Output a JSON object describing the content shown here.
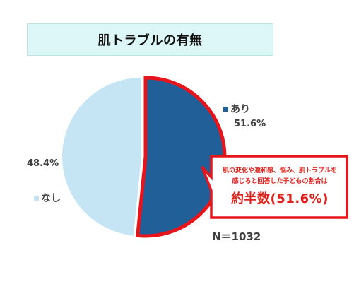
{
  "title": "肌トラブルの有無",
  "chart_data": {
    "type": "pie",
    "title": "肌トラブルの有無",
    "slices": [
      {
        "label": "あり",
        "value": 51.6,
        "value_label": "51.6%",
        "color": "#215f99"
      },
      {
        "label": "なし",
        "value": 48.4,
        "value_label": "48.4%",
        "color": "#c5e5f5"
      }
    ],
    "highlight_color": "#e8141c",
    "annotation": "N＝1032"
  },
  "callout": {
    "line1": "肌の変化や違和感、悩み、肌トラブルを",
    "line2": "感じると回答した子どもの割合は",
    "emphasis": "約半数(51.6%)"
  }
}
